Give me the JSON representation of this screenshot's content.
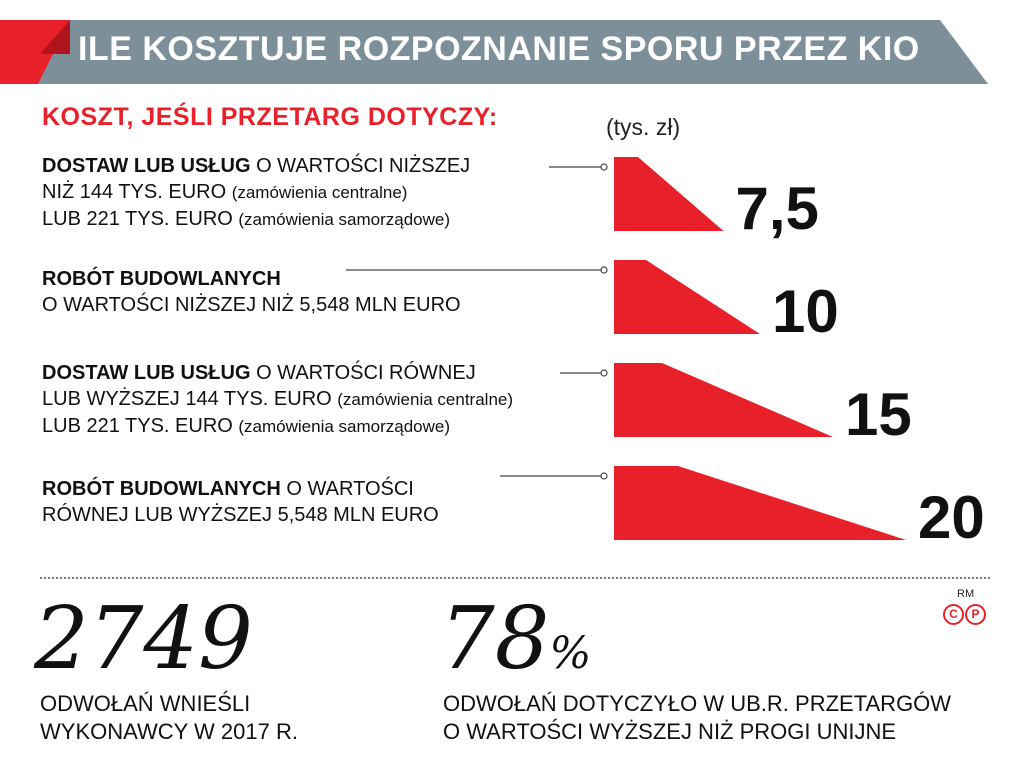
{
  "header": {
    "title": "ILE KOSZTUJE ROZPOZNANIE SPORU PRZEZ KIO",
    "subtitle": "KOSZT, JEŚLI PRZETARG DOTYCZY:",
    "unit": "(tys. zł)"
  },
  "rows": [
    {
      "lines": [
        {
          "lead": "DOSTAW LUB USŁUG",
          "text": " O WARTOŚCI NIŻSZEJ",
          "note": ""
        },
        {
          "lead": "",
          "text": "NIŻ 144 TYS. EURO ",
          "note": "(zamówienia centralne)"
        },
        {
          "lead": "",
          "text": "LUB 221 TYS. EURO ",
          "note": "(zamówienia samorządowe)"
        }
      ]
    },
    {
      "lines": [
        {
          "lead": "ROBÓT BUDOWLANYCH",
          "text": "",
          "note": ""
        },
        {
          "lead": "",
          "text": "O WARTOŚCI NIŻSZEJ NIŻ 5,548 MLN EURO",
          "note": ""
        }
      ]
    },
    {
      "lines": [
        {
          "lead": "DOSTAW LUB USŁUG",
          "text": " O WARTOŚCI RÓWNEJ",
          "note": ""
        },
        {
          "lead": "",
          "text": "LUB WYŻSZEJ 144 TYS. EURO ",
          "note": "(zamówienia centralne)"
        },
        {
          "lead": "",
          "text": "LUB 221 TYS. EURO ",
          "note": "(zamówienia samorządowe)"
        }
      ]
    },
    {
      "lines": [
        {
          "lead": "ROBÓT BUDOWLANYCH",
          "text": " O WARTOŚCI",
          "note": ""
        },
        {
          "lead": "",
          "text": "RÓWNEJ LUB WYŻSZEJ 5,548 MLN EURO",
          "note": ""
        }
      ]
    }
  ],
  "chart_data": {
    "type": "bar",
    "orientation": "horizontal",
    "categories": [
      "DOSTAW LUB USŁUG O WARTOŚCI NIŻSZEJ NIŻ 144 TYS. EURO (zamówienia centralne) LUB 221 TYS. EURO (zamówienia samorządowe)",
      "ROBÓT BUDOWLANYCH O WARTOŚCI NIŻSZEJ NIŻ 5,548 MLN EURO",
      "DOSTAW LUB USŁUG O WARTOŚCI RÓWNEJ LUB WYŻSZEJ 144 TYS. EURO (zamówienia centralne) LUB 221 TYS. EURO (zamówienia samorządowe)",
      "ROBÓT BUDOWLANYCH O WARTOŚCI RÓWNEJ LUB WYŻSZEJ 5,548 MLN EURO"
    ],
    "values": [
      7.5,
      10,
      15,
      20
    ],
    "value_labels": [
      "7,5",
      "10",
      "15",
      "20"
    ],
    "title": "ILE KOSZTUJE ROZPOZNANIE SPORU PRZEZ KIO",
    "unit": "(tys. zł)",
    "xlim": [
      0,
      20
    ],
    "grid": false,
    "legend": "none",
    "bar_color": "#e8202a"
  },
  "stats": [
    {
      "number": "2749",
      "suffix": "",
      "desc": [
        "ODWOŁAŃ WNIEŚLI",
        "WYKONAWCY W 2017 R."
      ]
    },
    {
      "number": "78",
      "suffix": "%",
      "desc": [
        "ODWOŁAŃ DOTYCZYŁO W UB.R. PRZETARGÓW",
        "O WARTOŚCI WYŻSZEJ NIŻ PROGI UNIJNE"
      ]
    }
  ],
  "credit": {
    "rm": "RM",
    "c": "C",
    "p": "P"
  },
  "colors": {
    "accent": "#e8202a",
    "banner": "#7d8f98",
    "text": "#111111"
  }
}
